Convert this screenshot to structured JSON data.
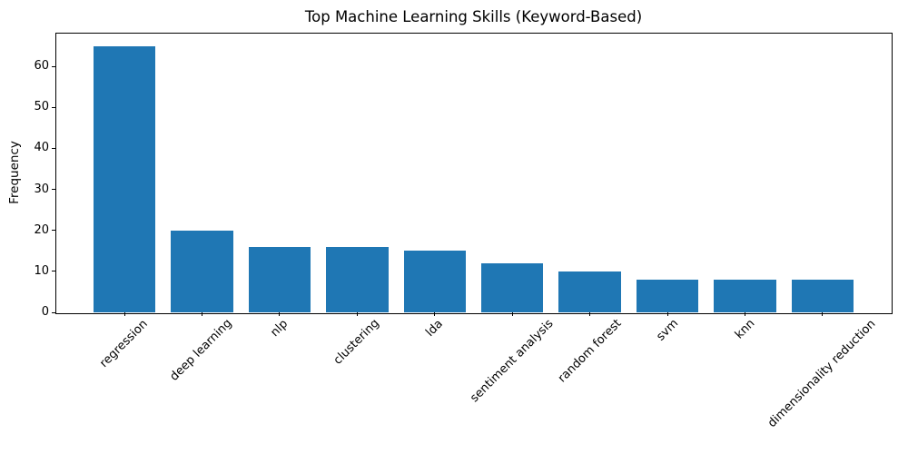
{
  "chart_data": {
    "type": "bar",
    "title": "Top Machine Learning Skills (Keyword-Based)",
    "xlabel": "",
    "ylabel": "Frequency",
    "categories": [
      "regression",
      "deep learning",
      "nlp",
      "clustering",
      "lda",
      "sentiment analysis",
      "random forest",
      "svm",
      "knn",
      "dimensionality reduction"
    ],
    "values": [
      65,
      20,
      16,
      16,
      15,
      12,
      10,
      8,
      8,
      8
    ],
    "yticks": [
      0,
      10,
      20,
      30,
      40,
      50,
      60
    ],
    "ylim": [
      0,
      68.25
    ],
    "bar_color": "#1f77b4",
    "grid": false,
    "legend": "none",
    "xtick_rotation_deg": 45,
    "bar_width_fraction": 0.8
  }
}
